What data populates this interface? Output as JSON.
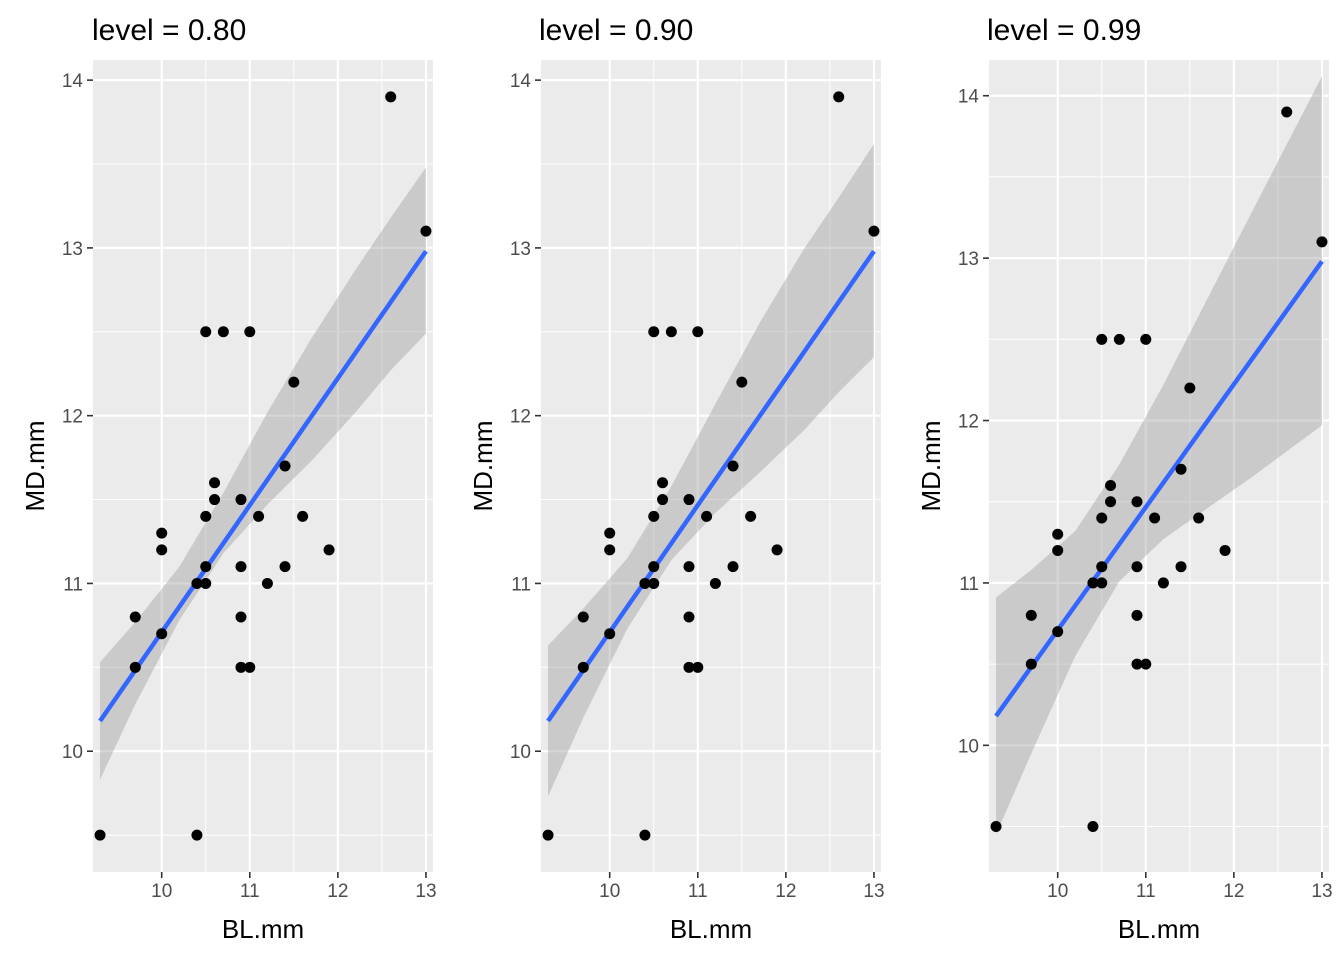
{
  "chart_data": [
    {
      "type": "scatter",
      "title": "level = 0.80",
      "xlabel": "BL.mm",
      "ylabel": "MD.mm",
      "xlim": [
        9.22,
        13.08
      ],
      "ylim": [
        9.28,
        14.12
      ],
      "xticks": [
        10,
        11,
        12,
        13
      ],
      "yticks": [
        10,
        11,
        12,
        13,
        14
      ],
      "xtick_labels": [
        "10",
        "11",
        "12",
        "13"
      ],
      "ytick_labels": [
        "10",
        "11",
        "12",
        "13",
        "14"
      ],
      "grid": true,
      "points": [
        [
          9.3,
          9.5
        ],
        [
          9.7,
          10.5
        ],
        [
          9.7,
          10.8
        ],
        [
          10.0,
          10.7
        ],
        [
          10.0,
          11.2
        ],
        [
          10.0,
          11.3
        ],
        [
          10.4,
          9.5
        ],
        [
          10.4,
          11.0
        ],
        [
          10.5,
          11.0
        ],
        [
          10.5,
          11.1
        ],
        [
          10.5,
          11.4
        ],
        [
          10.5,
          12.5
        ],
        [
          10.6,
          11.5
        ],
        [
          10.6,
          11.6
        ],
        [
          10.7,
          12.5
        ],
        [
          10.9,
          10.5
        ],
        [
          10.9,
          10.8
        ],
        [
          10.9,
          11.1
        ],
        [
          10.9,
          11.5
        ],
        [
          11.0,
          10.5
        ],
        [
          11.0,
          12.5
        ],
        [
          11.1,
          11.4
        ],
        [
          11.2,
          11.0
        ],
        [
          11.4,
          11.1
        ],
        [
          11.4,
          11.7
        ],
        [
          11.5,
          12.2
        ],
        [
          11.6,
          11.4
        ],
        [
          11.9,
          11.2
        ],
        [
          12.6,
          13.9
        ],
        [
          13.0,
          13.1
        ]
      ],
      "fit_line": {
        "x": [
          9.3,
          13.0
        ],
        "y": [
          10.18,
          12.98
        ],
        "color": "#3366FF"
      },
      "confidence_band": {
        "x": [
          9.3,
          9.7,
          10.2,
          10.7,
          11.2,
          11.7,
          12.2,
          12.6,
          13.0
        ],
        "lower": [
          9.83,
          10.28,
          10.78,
          11.18,
          11.47,
          11.73,
          12.02,
          12.27,
          12.49
        ],
        "upper": [
          10.53,
          10.77,
          11.1,
          11.54,
          12.02,
          12.46,
          12.87,
          13.18,
          13.48
        ],
        "color": "#999999"
      }
    },
    {
      "type": "scatter",
      "title": "level = 0.90",
      "xlabel": "BL.mm",
      "ylabel": "MD.mm",
      "xlim": [
        9.22,
        13.08
      ],
      "ylim": [
        9.28,
        14.12
      ],
      "xticks": [
        10,
        11,
        12,
        13
      ],
      "yticks": [
        10,
        11,
        12,
        13,
        14
      ],
      "xtick_labels": [
        "10",
        "11",
        "12",
        "13"
      ],
      "ytick_labels": [
        "10",
        "11",
        "12",
        "13",
        "14"
      ],
      "grid": true,
      "points": [
        [
          9.3,
          9.5
        ],
        [
          9.7,
          10.5
        ],
        [
          9.7,
          10.8
        ],
        [
          10.0,
          10.7
        ],
        [
          10.0,
          11.2
        ],
        [
          10.0,
          11.3
        ],
        [
          10.4,
          9.5
        ],
        [
          10.4,
          11.0
        ],
        [
          10.5,
          11.0
        ],
        [
          10.5,
          11.1
        ],
        [
          10.5,
          11.4
        ],
        [
          10.5,
          12.5
        ],
        [
          10.6,
          11.5
        ],
        [
          10.6,
          11.6
        ],
        [
          10.7,
          12.5
        ],
        [
          10.9,
          10.5
        ],
        [
          10.9,
          10.8
        ],
        [
          10.9,
          11.1
        ],
        [
          10.9,
          11.5
        ],
        [
          11.0,
          10.5
        ],
        [
          11.0,
          12.5
        ],
        [
          11.1,
          11.4
        ],
        [
          11.2,
          11.0
        ],
        [
          11.4,
          11.1
        ],
        [
          11.4,
          11.7
        ],
        [
          11.5,
          12.2
        ],
        [
          11.6,
          11.4
        ],
        [
          11.9,
          11.2
        ],
        [
          12.6,
          13.9
        ],
        [
          13.0,
          13.1
        ]
      ],
      "fit_line": {
        "x": [
          9.3,
          13.0
        ],
        "y": [
          10.18,
          12.98
        ],
        "color": "#3366FF"
      },
      "confidence_band": {
        "x": [
          9.3,
          9.7,
          10.2,
          10.7,
          11.2,
          11.7,
          12.2,
          12.6,
          13.0
        ],
        "lower": [
          9.73,
          10.2,
          10.73,
          11.14,
          11.42,
          11.66,
          11.91,
          12.14,
          12.35
        ],
        "upper": [
          10.63,
          10.85,
          11.15,
          11.58,
          12.07,
          12.55,
          12.99,
          13.3,
          13.62
        ],
        "color": "#999999"
      }
    },
    {
      "type": "scatter",
      "title": "level = 0.99",
      "xlabel": "BL.mm",
      "ylabel": "MD.mm",
      "xlim": [
        9.22,
        13.08
      ],
      "ylim": [
        9.22,
        14.22
      ],
      "xticks": [
        10,
        11,
        12,
        13
      ],
      "yticks": [
        10,
        11,
        12,
        13,
        14
      ],
      "xtick_labels": [
        "10",
        "11",
        "12",
        "13"
      ],
      "ytick_labels": [
        "10",
        "11",
        "12",
        "13",
        "14"
      ],
      "grid": true,
      "points": [
        [
          9.3,
          9.5
        ],
        [
          9.7,
          10.5
        ],
        [
          9.7,
          10.8
        ],
        [
          10.0,
          10.7
        ],
        [
          10.0,
          11.2
        ],
        [
          10.0,
          11.3
        ],
        [
          10.4,
          9.5
        ],
        [
          10.4,
          11.0
        ],
        [
          10.5,
          11.0
        ],
        [
          10.5,
          11.1
        ],
        [
          10.5,
          11.4
        ],
        [
          10.5,
          12.5
        ],
        [
          10.6,
          11.5
        ],
        [
          10.6,
          11.6
        ],
        [
          10.7,
          12.5
        ],
        [
          10.9,
          10.5
        ],
        [
          10.9,
          10.8
        ],
        [
          10.9,
          11.1
        ],
        [
          10.9,
          11.5
        ],
        [
          11.0,
          10.5
        ],
        [
          11.0,
          12.5
        ],
        [
          11.1,
          11.4
        ],
        [
          11.2,
          11.0
        ],
        [
          11.4,
          11.1
        ],
        [
          11.4,
          11.7
        ],
        [
          11.5,
          12.2
        ],
        [
          11.6,
          11.4
        ],
        [
          11.9,
          11.2
        ],
        [
          12.6,
          13.9
        ],
        [
          13.0,
          13.1
        ]
      ],
      "fit_line": {
        "x": [
          9.3,
          13.0
        ],
        "y": [
          10.18,
          12.98
        ],
        "color": "#3366FF"
      },
      "confidence_band": {
        "x": [
          9.3,
          9.7,
          10.2,
          10.7,
          11.2,
          11.7,
          12.2,
          12.6,
          13.0
        ],
        "lower": [
          9.45,
          9.95,
          10.55,
          11.01,
          11.27,
          11.46,
          11.65,
          11.81,
          11.97
        ],
        "upper": [
          10.91,
          11.08,
          11.32,
          11.73,
          12.22,
          12.75,
          13.28,
          13.7,
          14.12
        ],
        "color": "#999999"
      }
    }
  ]
}
